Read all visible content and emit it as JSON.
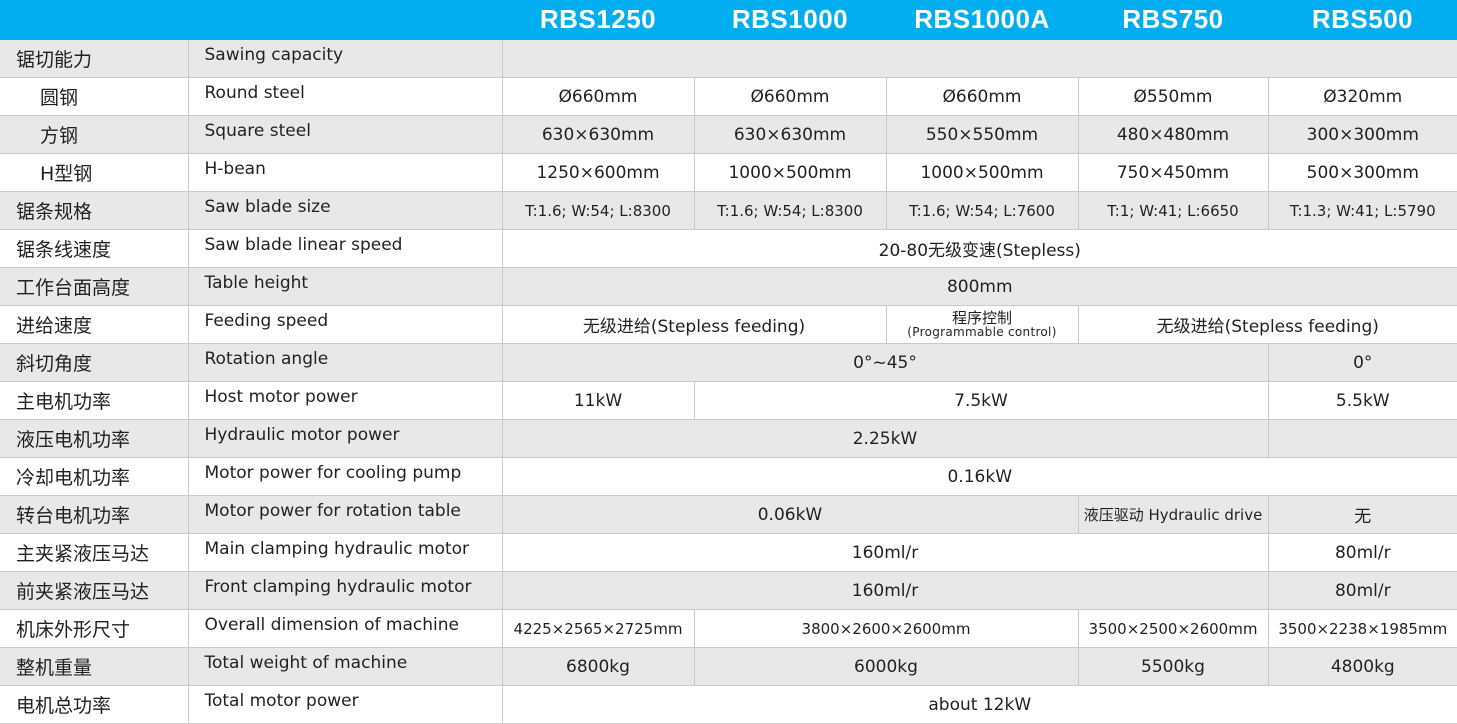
{
  "colors": {
    "header": "#00aeef",
    "row_alt": "#e8e8e8",
    "border": "#c9c9c9"
  },
  "models": [
    "RBS1250",
    "RBS1000",
    "RBS1000A",
    "RBS750",
    "RBS500"
  ],
  "rows": [
    {
      "zh": "锯切能力",
      "en": "Sawing capacity",
      "cells": [
        {
          "text": "",
          "span": 5
        }
      ],
      "noinner": true
    },
    {
      "zh": "圆钢",
      "sub": true,
      "en": "Round steel",
      "cells": [
        {
          "text": "Ø660mm"
        },
        {
          "text": "Ø660mm"
        },
        {
          "text": "Ø660mm"
        },
        {
          "text": "Ø550mm"
        },
        {
          "text": "Ø320mm"
        }
      ]
    },
    {
      "zh": "方钢",
      "sub": true,
      "en": "Square steel",
      "cells": [
        {
          "text": "630×630mm"
        },
        {
          "text": "630×630mm"
        },
        {
          "text": "550×550mm"
        },
        {
          "text": "480×480mm"
        },
        {
          "text": "300×300mm"
        }
      ]
    },
    {
      "zh": "H型钢",
      "sub": true,
      "en": "H-bean",
      "cells": [
        {
          "text": "1250×600mm"
        },
        {
          "text": "1000×500mm"
        },
        {
          "text": "1000×500mm"
        },
        {
          "text": "750×450mm"
        },
        {
          "text": "500×300mm"
        }
      ]
    },
    {
      "zh": "锯条规格",
      "en": "Saw blade size",
      "cells": [
        {
          "text": "T:1.6; W:54; L:8300",
          "small": true
        },
        {
          "text": "T:1.6; W:54; L:8300",
          "small": true
        },
        {
          "text": "T:1.6; W:54; L:7600",
          "small": true
        },
        {
          "text": "T:1; W:41; L:6650",
          "small": true
        },
        {
          "text": "T:1.3; W:41; L:5790",
          "small": true
        }
      ]
    },
    {
      "zh": "锯条线速度",
      "en": "Saw blade linear speed",
      "cells": [
        {
          "text": "20-80无级变速(Stepless)",
          "span": 5
        }
      ]
    },
    {
      "zh": "工作台面高度",
      "en": "Table height",
      "cells": [
        {
          "text": "800mm",
          "span": 5
        }
      ]
    },
    {
      "zh": "进给速度",
      "en": "Feeding speed",
      "cells": [
        {
          "text": "无级进给(Stepless feeding)",
          "span": 2
        },
        {
          "text": "程序控制",
          "text2": "(Programmable control)"
        },
        {
          "text": "无级进给(Stepless feeding)",
          "span": 2
        }
      ]
    },
    {
      "zh": "斜切角度",
      "en": "Rotation angle",
      "cells": [
        {
          "text": "0°~45°",
          "span": 4
        },
        {
          "text": "0°"
        }
      ]
    },
    {
      "zh": "主电机功率",
      "en": "Host motor power",
      "cells": [
        {
          "text": "11kW"
        },
        {
          "text": "7.5kW",
          "span": 3
        },
        {
          "text": "5.5kW"
        }
      ]
    },
    {
      "zh": "液压电机功率",
      "en": "Hydraulic motor power",
      "cells": [
        {
          "text": "2.25kW",
          "span": 4
        },
        {
          "text": ""
        }
      ]
    },
    {
      "zh": "冷却电机功率",
      "en": "Motor power for cooling pump",
      "cells": [
        {
          "text": "0.16kW",
          "span": 5
        }
      ]
    },
    {
      "zh": "转台电机功率",
      "en": "Motor power for rotation table",
      "cells": [
        {
          "text": "0.06kW",
          "span": 3
        },
        {
          "text": "液压驱动 Hydraulic drive",
          "small": true
        },
        {
          "text": "无"
        }
      ]
    },
    {
      "zh": "主夹紧液压马达",
      "en": "Main clamping hydraulic motor",
      "cells": [
        {
          "text": "160ml/r",
          "span": 4
        },
        {
          "text": "80ml/r"
        }
      ]
    },
    {
      "zh": "前夹紧液压马达",
      "en": "Front clamping hydraulic motor",
      "cells": [
        {
          "text": "160ml/r",
          "span": 4
        },
        {
          "text": "80ml/r"
        }
      ]
    },
    {
      "zh": "机床外形尺寸",
      "en": "Overall dimension of machine",
      "cells": [
        {
          "text": "4225×2565×2725mm",
          "small": true
        },
        {
          "text": "3800×2600×2600mm",
          "span": 2,
          "small": true
        },
        {
          "text": "3500×2500×2600mm",
          "small": true
        },
        {
          "text": "3500×2238×1985mm",
          "small": true
        }
      ]
    },
    {
      "zh": "整机重量",
      "en": "Total weight of machine",
      "cells": [
        {
          "text": "6800kg"
        },
        {
          "text": "6000kg",
          "span": 2
        },
        {
          "text": "5500kg"
        },
        {
          "text": "4800kg"
        }
      ]
    },
    {
      "zh": "电机总功率",
      "en": "Total motor power",
      "cells": [
        {
          "text": "about 12kW",
          "span": 5
        }
      ]
    }
  ]
}
